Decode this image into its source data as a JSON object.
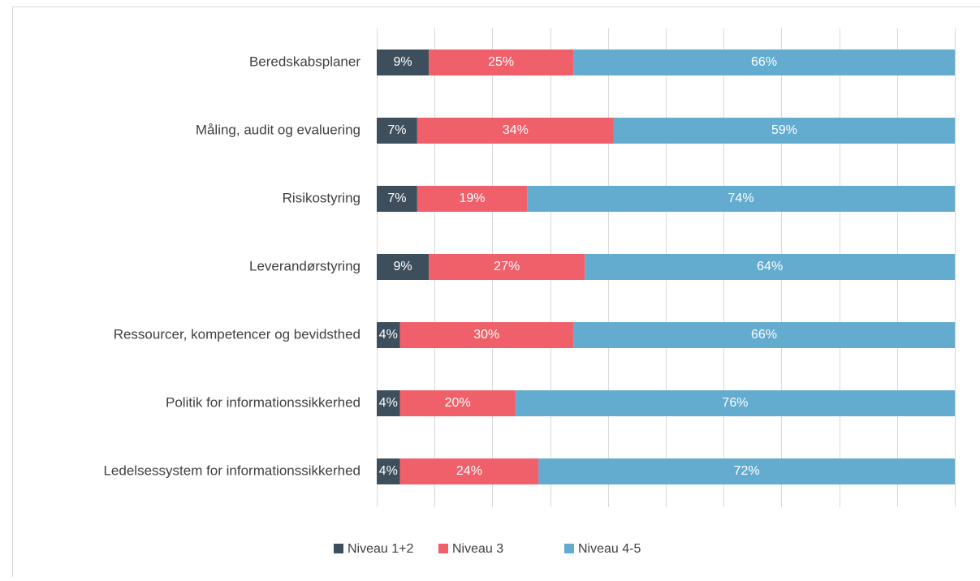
{
  "chart_data": {
    "type": "bar",
    "orientation": "horizontal",
    "stacked": true,
    "categories": [
      "Beredskabsplaner",
      "Måling, audit og evaluering",
      "Risikostyring",
      "Leverandørstyring",
      "Ressourcer, kompetencer og bevidsthed",
      "Politik for informationssikkerhed",
      "Ledelsessystem for informationssikkerhed"
    ],
    "series": [
      {
        "name": "Niveau 1+2",
        "color": "#3d4f5c",
        "values": [
          9,
          7,
          7,
          9,
          4,
          4,
          4
        ],
        "value_labels": [
          "9%",
          "7%",
          "7%",
          "9%",
          "4%",
          "4%",
          "4%"
        ]
      },
      {
        "name": "Niveau 3",
        "color": "#f0606a",
        "values": [
          25,
          34,
          19,
          27,
          30,
          20,
          24
        ],
        "value_labels": [
          "25%",
          "34%",
          "19%",
          "27%",
          "30%",
          "20%",
          "24%"
        ]
      },
      {
        "name": "Niveau 4-5",
        "color": "#63acd0",
        "values": [
          66,
          59,
          74,
          64,
          66,
          76,
          72
        ],
        "value_labels": [
          "66%",
          "59%",
          "74%",
          "64%",
          "66%",
          "76%",
          "72%"
        ]
      }
    ],
    "xlim": [
      0,
      100
    ],
    "xticks": [
      0,
      10,
      20,
      30,
      40,
      50,
      60,
      70,
      80,
      90,
      100
    ],
    "grid": true,
    "legend": "bottom"
  }
}
